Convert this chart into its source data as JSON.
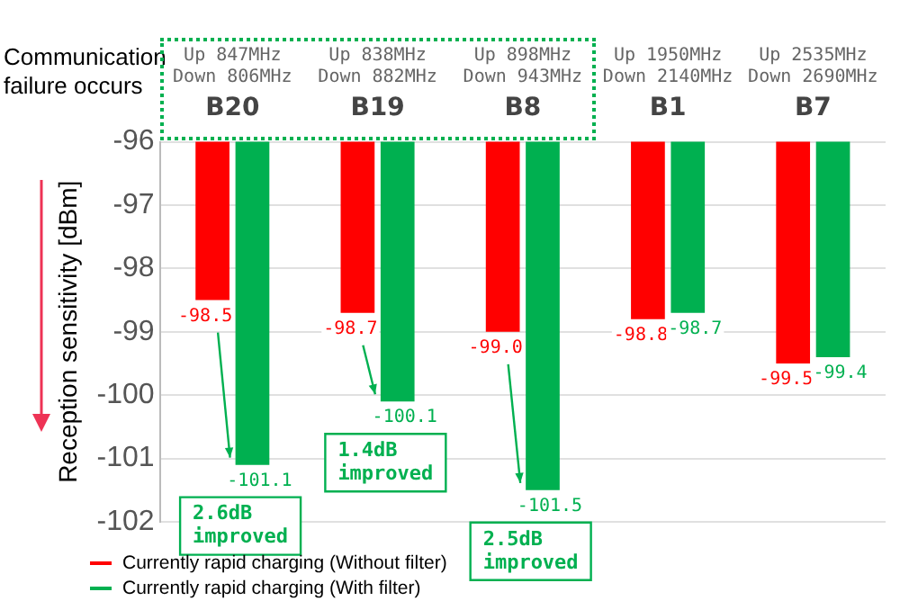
{
  "chart_data": {
    "type": "bar",
    "ylabel": "Reception sensitivity [dBm]",
    "categories": [
      "B20",
      "B19",
      "B8",
      "B1",
      "B7"
    ],
    "series": [
      {
        "name": "Currently rapid charging (Without filter)",
        "color": "#ff0000",
        "values": [
          -98.5,
          -98.7,
          -99.0,
          -98.8,
          -99.5
        ],
        "value_labels": [
          "-98.5",
          "-98.7",
          "-99.0",
          "-98.8",
          "-99.5"
        ]
      },
      {
        "name": "Currently rapid charging (With filter)",
        "color": "#00b050",
        "values": [
          -101.1,
          -100.1,
          -101.5,
          -98.7,
          -99.4
        ],
        "value_labels": [
          "-101.1",
          "-100.1",
          "-101.5",
          "-98.7",
          "-99.4"
        ]
      }
    ],
    "ylim": [
      -102,
      -96
    ],
    "yticks": [
      -102,
      -101,
      -100,
      -99,
      -98,
      -97,
      -96
    ],
    "grid": "y",
    "legend": "bottom left",
    "annotations": [
      "Communication failure occurs",
      {
        "text": "Up 847MHz\nDown 806MHz",
        "x": "B20"
      },
      {
        "text": "Up 838MHz\nDown 882MHz",
        "x": "B19"
      },
      {
        "text": "Up 898MHz\nDown 943MHz",
        "x": "B8"
      },
      {
        "text": "Up 1950MHz\nDown 2140MHz",
        "x": "B1"
      },
      {
        "text": "Up 2535MHz\nDown 2690MHz",
        "x": "B7"
      },
      {
        "text": "2.6dB\nimproved",
        "x": "B20",
        "y": -101.1
      },
      {
        "text": "1.4dB\nimproved",
        "x": "B19",
        "y": -100.1
      },
      {
        "text": "2.5dB\nimproved",
        "x": "B8",
        "y": -101.5
      }
    ]
  }
}
